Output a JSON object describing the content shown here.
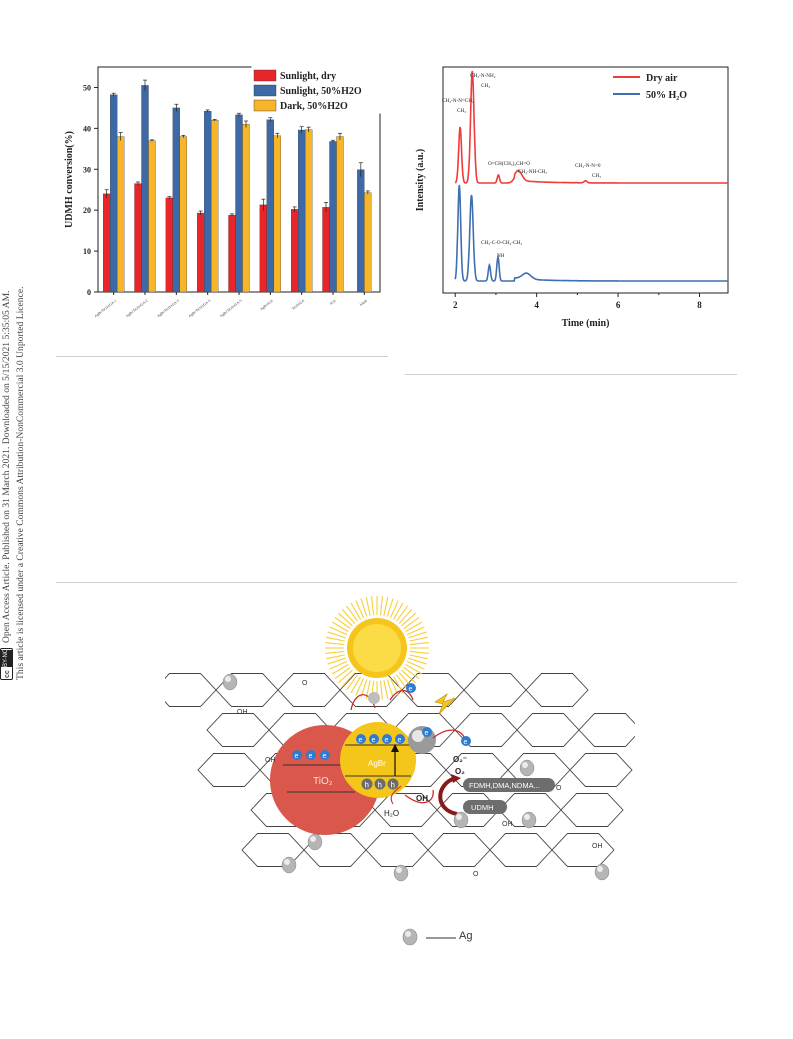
{
  "sidebar": {
    "license_badge": "cc BY-NC",
    "line1": "Open Access Article. Published on 31 March 2021. Downloaded on 5/15/2021 5:35:05 AM.",
    "line2": "This article is licensed under a Creative Commons Attribution-NonCommercial 3.0 Unported Licence."
  },
  "chart_data": [
    {
      "type": "bar",
      "ylabel": "UDMH conversion(%)",
      "ylim": [
        0,
        55
      ],
      "yticks": [
        0,
        10,
        20,
        30,
        40,
        50
      ],
      "categories": [
        "AgBr/TiO2/rGA-1",
        "AgBr/TiO2/rGA-2",
        "AgBr/TiO2/rGA-3",
        "AgBr/TiO2/rGA-4",
        "AgBr/TiO2/rGA-5",
        "AgBr/rGA",
        "TiO2/rGA",
        "rGA",
        "blank"
      ],
      "series": [
        {
          "name": "Sunlight, dry",
          "color": "#e8262a",
          "values": [
            24,
            26.5,
            23,
            19.3,
            18.8,
            21.3,
            20.2,
            20.7,
            null
          ],
          "errors": [
            1.0,
            0.4,
            0.3,
            0.5,
            0.3,
            1.4,
            0.6,
            1.2,
            null
          ]
        },
        {
          "name": "Sunlight, 50%H2O",
          "color": "#3d6aa7",
          "values": [
            48.2,
            50.5,
            45,
            44.2,
            43.3,
            42.1,
            39.6,
            36.8,
            29.9
          ],
          "errors": [
            0.4,
            1.3,
            0.9,
            0.3,
            0.4,
            0.5,
            0.8,
            0.3,
            1.7
          ]
        },
        {
          "name": "Dark, 50%H2O",
          "color": "#f7b529",
          "values": [
            38,
            37,
            38,
            42,
            41,
            38.2,
            39.7,
            38,
            24.3
          ],
          "errors": [
            1.0,
            0.2,
            0.3,
            0.2,
            0.8,
            0.6,
            0.6,
            0.8,
            0.4
          ]
        }
      ],
      "legend_position": "top-right"
    },
    {
      "type": "line",
      "xlabel": "Time (min)",
      "ylabel": "Intensity (a.u.)",
      "xlim": [
        1.7,
        8.7
      ],
      "xticks": [
        2,
        4,
        6,
        8
      ],
      "series": [
        {
          "name": "Dry air",
          "color": "#ee3b3b"
        },
        {
          "name": "50% H₂O",
          "color": "#3f6fb0"
        }
      ],
      "annotations": [
        "CH₃-N-NH₂",
        "CH₃",
        "CH₃-N-N=CH₂",
        "CH₃",
        "O=CH(CH₃)₃CH=O",
        "CH₃-NH-CH₃",
        "CH₃-N-N=0",
        "CH₃",
        "CH₃-C-O-CH₂-CH₃",
        "NH"
      ],
      "legend_position": "top-right"
    }
  ],
  "scheme": {
    "tio2_label": "TiO₂",
    "agbr_label": "AgBr",
    "electron": "e",
    "hole": "h",
    "o2_label": "O₂",
    "o2_minus_label": "O₂⁻",
    "oh_radical": "OH",
    "h2o_label": "H₂O",
    "products_label": "FDMH,DMA,NDMA...",
    "udmh_label": "UDMH",
    "surface_groups": [
      "OH",
      "OH",
      "OH",
      "OH",
      "O",
      "O",
      "O"
    ],
    "legend_text": "Ag"
  }
}
